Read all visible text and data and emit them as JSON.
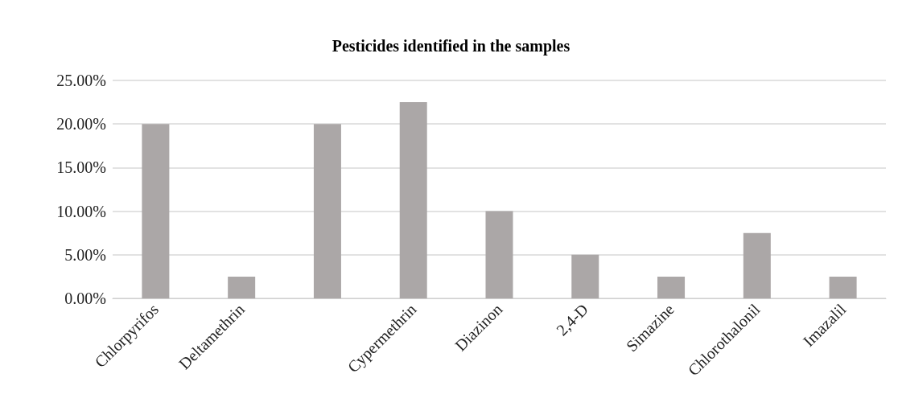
{
  "chart_data": {
    "type": "bar",
    "title": "Pesticides identified in the samples",
    "categories": [
      "Chlorpyrifos",
      "Deltamethrin",
      null,
      "Cypermethrin",
      "Diazinon",
      "2,4-D",
      "Simazine",
      "Chlorothalonil",
      "Imazalil"
    ],
    "values": [
      20,
      2.5,
      20,
      22.5,
      10,
      5,
      2.5,
      7.5,
      2.5
    ],
    "color": "#aba7a7",
    "ylim": [
      0,
      25
    ],
    "yticks": [
      {
        "value": 0,
        "label": "0.00%"
      },
      {
        "value": 5,
        "label": "5.00%"
      },
      {
        "value": 10,
        "label": "10.00%"
      },
      {
        "value": 15,
        "label": "15.00%"
      },
      {
        "value": 20,
        "label": "20.00%"
      },
      {
        "value": 25,
        "label": "25.00%"
      }
    ],
    "grid": "y"
  }
}
